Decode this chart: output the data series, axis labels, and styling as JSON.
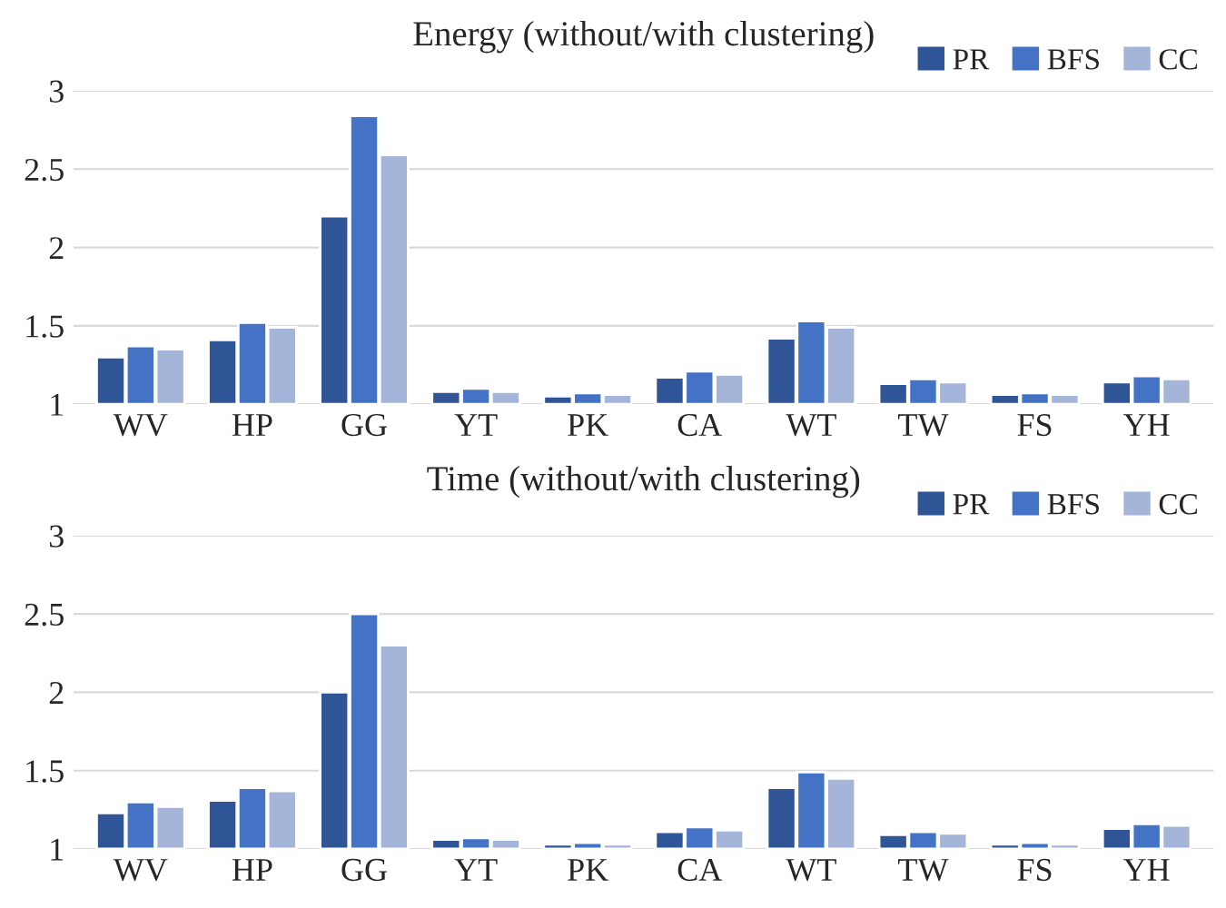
{
  "chart_data": [
    {
      "type": "bar",
      "title": "Energy (without/with clustering)",
      "categories": [
        "WV",
        "HP",
        "GG",
        "YT",
        "PK",
        "CA",
        "WT",
        "TW",
        "FS",
        "YH"
      ],
      "series": [
        {
          "name": "PR",
          "color": "#2f5597",
          "values": [
            1.3,
            1.41,
            2.2,
            1.08,
            1.05,
            1.17,
            1.42,
            1.13,
            1.06,
            1.14
          ]
        },
        {
          "name": "BFS",
          "color": "#4472c4",
          "values": [
            1.37,
            1.52,
            2.84,
            1.1,
            1.07,
            1.21,
            1.53,
            1.16,
            1.07,
            1.18
          ]
        },
        {
          "name": "CC",
          "color": "#a5b4d9",
          "values": [
            1.35,
            1.49,
            2.59,
            1.08,
            1.06,
            1.19,
            1.49,
            1.14,
            1.06,
            1.16
          ]
        }
      ],
      "ylim": [
        1,
        3
      ],
      "yticks": [
        1,
        1.5,
        2,
        2.5,
        3
      ],
      "grid": "y",
      "legend": "top right"
    },
    {
      "type": "bar",
      "title": "Time (without/with clustering)",
      "categories": [
        "WV",
        "HP",
        "GG",
        "YT",
        "PK",
        "CA",
        "WT",
        "TW",
        "FS",
        "YH"
      ],
      "series": [
        {
          "name": "PR",
          "color": "#2f5597",
          "values": [
            1.23,
            1.31,
            2.0,
            1.06,
            1.03,
            1.11,
            1.39,
            1.09,
            1.03,
            1.13
          ]
        },
        {
          "name": "BFS",
          "color": "#4472c4",
          "values": [
            1.3,
            1.39,
            2.5,
            1.07,
            1.04,
            1.14,
            1.49,
            1.11,
            1.04,
            1.16
          ]
        },
        {
          "name": "CC",
          "color": "#a5b4d9",
          "values": [
            1.27,
            1.37,
            2.3,
            1.06,
            1.03,
            1.12,
            1.45,
            1.1,
            1.03,
            1.15
          ]
        }
      ],
      "ylim": [
        1,
        3
      ],
      "yticks": [
        1,
        1.5,
        2,
        2.5,
        3
      ],
      "grid": "y",
      "legend": "top right"
    }
  ]
}
